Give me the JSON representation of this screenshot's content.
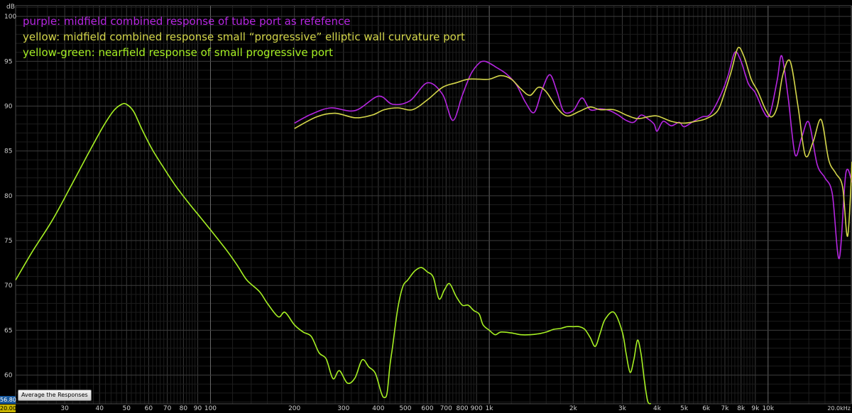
{
  "chart_data": {
    "type": "line",
    "xscale": "log",
    "xlim": [
      20,
      20000
    ],
    "ylim": [
      56.8,
      101.2
    ],
    "ylabel": "dB",
    "yticks": [
      100,
      95,
      90,
      85,
      80,
      75,
      70,
      65,
      60
    ],
    "xtick_labels": [
      {
        "v": 30,
        "t": "30"
      },
      {
        "v": 40,
        "t": "40"
      },
      {
        "v": 50,
        "t": "50"
      },
      {
        "v": 60,
        "t": "60"
      },
      {
        "v": 70,
        "t": "70"
      },
      {
        "v": 80,
        "t": "80"
      },
      {
        "v": 90,
        "t": "90"
      },
      {
        "v": 100,
        "t": "100"
      },
      {
        "v": 200,
        "t": "200"
      },
      {
        "v": 300,
        "t": "300"
      },
      {
        "v": 400,
        "t": "400"
      },
      {
        "v": 500,
        "t": "500"
      },
      {
        "v": 600,
        "t": "600"
      },
      {
        "v": 700,
        "t": "700"
      },
      {
        "v": 800,
        "t": "800"
      },
      {
        "v": 900,
        "t": "900"
      },
      {
        "v": 1000,
        "t": "1k"
      },
      {
        "v": 2000,
        "t": "2k"
      },
      {
        "v": 3000,
        "t": "3k"
      },
      {
        "v": 4000,
        "t": "4k"
      },
      {
        "v": 5000,
        "t": "5k"
      },
      {
        "v": 6000,
        "t": "6k"
      },
      {
        "v": 7000,
        "t": "7k"
      },
      {
        "v": 8000,
        "t": "8k"
      },
      {
        "v": 9000,
        "t": "9k"
      },
      {
        "v": 10000,
        "t": "10k"
      }
    ],
    "x_end_label": "20.0kHz",
    "x_start_label": "20.00",
    "y_start_label": "56.80",
    "grid": true,
    "legend_placement": "top-left",
    "series": [
      {
        "name": "purple: midfield combined response of tube port as refefence",
        "color": "#b526e0",
        "x": [
          200,
          230,
          270,
          330,
          400,
          450,
          520,
          600,
          680,
          740,
          800,
          860,
          920,
          960,
          1000,
          1050,
          1150,
          1250,
          1350,
          1450,
          1550,
          1650,
          1750,
          1850,
          2000,
          2150,
          2300,
          2500,
          2700,
          2900,
          3100,
          3300,
          3500,
          3700,
          3900,
          4000,
          4200,
          4500,
          4800,
          5000,
          5400,
          5800,
          6200,
          6800,
          7200,
          7600,
          8000,
          8500,
          9000,
          9600,
          10000,
          10300,
          10800,
          11200,
          11800,
          12500,
          13200,
          14000,
          15000,
          16000,
          17000,
          18000,
          19000,
          20000
        ],
        "values": [
          88.1,
          89.1,
          89.8,
          89.5,
          91.1,
          90.2,
          90.6,
          92.6,
          91.3,
          88.4,
          91.2,
          93.6,
          94.8,
          95.0,
          94.8,
          94.4,
          93.6,
          92.4,
          90.4,
          89.3,
          91.9,
          93.5,
          91.6,
          89.4,
          89.5,
          90.9,
          89.6,
          89.7,
          89.5,
          89.0,
          88.4,
          88.2,
          89.0,
          88.6,
          88.0,
          87.2,
          88.3,
          87.8,
          88.2,
          87.7,
          88.3,
          88.8,
          89.1,
          91.4,
          93.5,
          96.0,
          95.0,
          92.5,
          91.5,
          89.5,
          88.8,
          89.8,
          93.0,
          95.6,
          91.0,
          84.6,
          86.5,
          88.2,
          83.5,
          82.0,
          80.2,
          73.0,
          82.5,
          81.5
        ]
      },
      {
        "name": "yellow: midfield combined response small “progressive” elliptic wall curvature port",
        "color": "#d4d64a",
        "x": [
          200,
          240,
          280,
          330,
          380,
          420,
          470,
          530,
          600,
          680,
          760,
          840,
          920,
          1000,
          1100,
          1200,
          1300,
          1400,
          1500,
          1600,
          1750,
          1900,
          2100,
          2300,
          2500,
          2800,
          3100,
          3400,
          3700,
          4000,
          4500,
          5000,
          5500,
          6000,
          6600,
          7000,
          7400,
          7800,
          8200,
          8700,
          9200,
          9800,
          10300,
          10800,
          11300,
          12000,
          12800,
          13600,
          14500,
          15500,
          16500,
          17500,
          18500,
          19300,
          20000
        ],
        "values": [
          87.5,
          88.8,
          89.2,
          88.7,
          89.0,
          89.6,
          89.8,
          89.6,
          90.7,
          92.1,
          92.6,
          93.0,
          93.0,
          93.0,
          93.4,
          93.0,
          91.9,
          91.2,
          92.1,
          91.6,
          89.8,
          88.9,
          89.4,
          89.9,
          89.6,
          89.6,
          89.0,
          88.6,
          88.8,
          88.9,
          88.3,
          88.1,
          88.3,
          88.6,
          89.5,
          91.6,
          94.0,
          96.5,
          95.5,
          93.0,
          91.6,
          89.6,
          88.8,
          90.0,
          93.5,
          95.0,
          90.0,
          84.5,
          86.0,
          88.5,
          84.0,
          82.5,
          81.0,
          75.5,
          83.8
        ]
      },
      {
        "name": "yellow-green: nearfield response of small progressive port",
        "color": "#a6f023",
        "x": [
          20,
          23,
          27,
          31,
          36,
          41,
          45,
          48,
          50,
          53,
          57,
          62,
          68,
          75,
          83,
          92,
          100,
          115,
          125,
          135,
          150,
          160,
          175,
          185,
          200,
          215,
          230,
          245,
          260,
          275,
          290,
          310,
          330,
          350,
          370,
          390,
          410,
          420,
          430,
          440,
          450,
          470,
          490,
          510,
          540,
          570,
          600,
          630,
          660,
          690,
          720,
          760,
          800,
          840,
          880,
          920,
          950,
          1000,
          1050,
          1100,
          1200,
          1300,
          1400,
          1500,
          1600,
          1700,
          1800,
          1900,
          2000,
          2100,
          2200,
          2300,
          2400,
          2500,
          2600,
          2800,
          3000,
          3100,
          3200,
          3300,
          3400,
          3500,
          3600,
          3700,
          3800
        ],
        "values": [
          70.6,
          73.8,
          77.2,
          80.6,
          84.4,
          87.6,
          89.5,
          90.2,
          90.2,
          89.4,
          87.3,
          85.1,
          83.1,
          81.1,
          79.3,
          77.6,
          76.2,
          73.8,
          72.2,
          70.6,
          69.3,
          68.0,
          66.5,
          67.0,
          65.6,
          64.8,
          64.3,
          62.5,
          61.8,
          59.6,
          60.5,
          59.1,
          59.7,
          61.7,
          60.9,
          60.2,
          58.0,
          57.5,
          58.0,
          61.0,
          63.2,
          67.5,
          69.9,
          70.6,
          71.6,
          72.0,
          71.5,
          70.9,
          68.5,
          69.5,
          70.2,
          68.8,
          67.8,
          67.8,
          67.2,
          66.8,
          65.6,
          65.0,
          64.5,
          64.8,
          64.7,
          64.5,
          64.5,
          64.6,
          64.8,
          65.1,
          65.2,
          65.4,
          65.4,
          65.4,
          65.1,
          64.2,
          63.2,
          64.7,
          66.2,
          67.0,
          64.8,
          62.3,
          60.3,
          61.7,
          63.9,
          62.4,
          59.4,
          57.1,
          56.8
        ]
      }
    ]
  },
  "ui": {
    "button_label": "Average the Responses",
    "y_unit": "dB"
  }
}
